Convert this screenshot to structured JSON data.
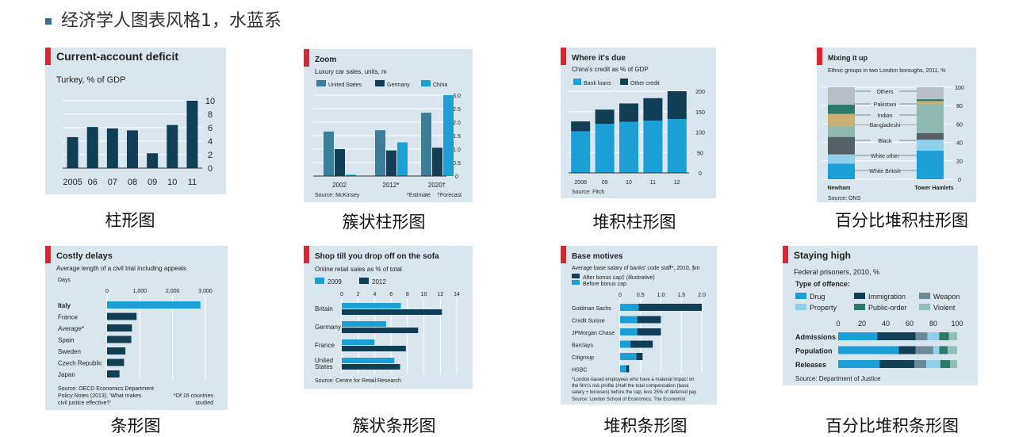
{
  "title": "经济学人图表风格1，水蓝系",
  "captions": [
    "柱形图",
    "簇状柱形图",
    "堆积柱形图",
    "百分比堆积柱形图",
    "条形图",
    "簇状条形图",
    "堆积条形图",
    "百分比堆积条形图"
  ],
  "colors": {
    "dark": "#0f3e55",
    "mid": "#3a7f9a",
    "light": "#1a9fd6",
    "pale": "#8fd1ec",
    "red": "#e3212f",
    "bg": "#d9e6ee"
  },
  "chart_data": [
    {
      "type": "bar",
      "title": "Current-account deficit",
      "subtitle": "Turkey, % of GDP",
      "categories": [
        "2005",
        "06",
        "07",
        "08",
        "09",
        "10",
        "11"
      ],
      "values": [
        4.6,
        6.1,
        5.9,
        5.6,
        2.2,
        6.4,
        10.0
      ],
      "yticks": [
        "0",
        "2",
        "4",
        "6",
        "8",
        "10"
      ],
      "ylim": [
        0,
        10
      ]
    },
    {
      "type": "bar",
      "title": "Zoom",
      "subtitle": "Luxury car sales, units, m",
      "categories": [
        "2002",
        "2012*",
        "2020†"
      ],
      "series": [
        {
          "name": "United States",
          "values": [
            1.65,
            1.7,
            2.35
          ]
        },
        {
          "name": "Germany",
          "values": [
            1.0,
            0.95,
            1.05
          ]
        },
        {
          "name": "China",
          "values": [
            0.05,
            1.25,
            3.0
          ]
        }
      ],
      "yticks": [
        "0",
        "0.5",
        "1.0",
        "1.5",
        "2.0",
        "2.5",
        "3.0"
      ],
      "ylim": [
        0,
        3
      ],
      "source": "Source: McKinsey",
      "notes": [
        "*Estimate",
        "†Forecast"
      ]
    },
    {
      "type": "bar",
      "title": "Where it's due",
      "subtitle": "China's credit as % of GDP",
      "categories": [
        "2008",
        "09",
        "10",
        "11",
        "12"
      ],
      "series": [
        {
          "name": "Bank loans",
          "values": [
            102,
            120,
            125,
            128,
            132
          ]
        },
        {
          "name": "Other credit",
          "values": [
            24,
            35,
            45,
            55,
            68
          ]
        }
      ],
      "yticks": [
        "0",
        "50",
        "100",
        "150",
        "200"
      ],
      "ylim": [
        0,
        200
      ],
      "source": "Source: Fitch"
    },
    {
      "type": "bar",
      "title": "Mixing it up",
      "subtitle": "Ethnic groups in two London boroughs, 2011, %",
      "categories": [
        "Newham",
        "Tower Hamlets"
      ],
      "series": [
        {
          "name": "White British",
          "values": [
            17,
            31
          ]
        },
        {
          "name": "White other",
          "values": [
            10,
            12
          ]
        },
        {
          "name": "Black",
          "values": [
            19,
            7
          ]
        },
        {
          "name": "Bangladeshi",
          "values": [
            12,
            32
          ]
        },
        {
          "name": "Indian",
          "values": [
            13,
            3
          ]
        },
        {
          "name": "Pakistani",
          "values": [
            10,
            2
          ]
        },
        {
          "name": "Others",
          "values": [
            19,
            13
          ]
        }
      ],
      "yticks": [
        "0",
        "20",
        "40",
        "60",
        "80",
        "100"
      ],
      "ylim": [
        0,
        100
      ],
      "source": "Source: ONS"
    },
    {
      "type": "bar",
      "title": "Costly delays",
      "subtitle": "Average length of a civil trial including appeals",
      "unit": "Days",
      "categories": [
        "Italy",
        "France",
        "Average*",
        "Spain",
        "Sweden",
        "Czech Republic",
        "Japan"
      ],
      "values": [
        2850,
        900,
        760,
        740,
        560,
        520,
        380
      ],
      "xticks": [
        "0",
        "1,000",
        "2,000",
        "3,000"
      ],
      "xlim": [
        0,
        3000
      ],
      "source": "Source: OECD Economics Department Policy Notes (2013), 'What makes civil justice effective?'",
      "note": "*Of 16 countries studied"
    },
    {
      "type": "bar",
      "title": "Shop till you drop off on the sofa",
      "subtitle": "Online retail sales as % of total",
      "categories": [
        "Britain",
        "Germany",
        "France",
        "United States"
      ],
      "series": [
        {
          "name": "2009",
          "values": [
            7.2,
            5.4,
            4.0,
            6.4
          ]
        },
        {
          "name": "2012",
          "values": [
            12.2,
            9.3,
            7.8,
            7.1
          ]
        }
      ],
      "xticks": [
        "0",
        "2",
        "4",
        "6",
        "8",
        "10",
        "12",
        "14"
      ],
      "xlim": [
        0,
        14
      ],
      "source": "Source: Centre for Retail Research"
    },
    {
      "type": "bar",
      "title": "Base motives",
      "subtitle": "Average base salary of banks' code staff*, 2010, $m",
      "categories": [
        "Goldman Sachs",
        "Credit Suisse",
        "JPMorgan Chase",
        "Barclays",
        "Citigroup",
        "HSBC"
      ],
      "series": [
        {
          "name": "Before bonus cap",
          "values": [
            0.45,
            0.42,
            0.42,
            0.25,
            0.4,
            0.15
          ]
        },
        {
          "name": "After bonus cap‡ (illustrative)",
          "values": [
            1.55,
            0.58,
            0.58,
            0.55,
            0.15,
            0.07
          ]
        }
      ],
      "xticks": [
        "0",
        "0.5",
        "1.0",
        "1.5",
        "2.0"
      ],
      "xlim": [
        0,
        2
      ],
      "footnote": "*London-based employees who have a material impact on the firm's risk profile  ‡Half the total compensation (base salary + bonuses) before the cap, less 25% of deferred pay",
      "source": "Source: London School of Economics; The Economist"
    },
    {
      "type": "bar",
      "title": "Staying high",
      "subtitle": "Federal prisoners, 2010, %",
      "legend_title": "Type of offence:",
      "categories": [
        "Admissions",
        "Population",
        "Releases"
      ],
      "series": [
        {
          "name": "Drug",
          "values": [
            33,
            51,
            35
          ]
        },
        {
          "name": "Immigration",
          "values": [
            32,
            14,
            29
          ]
        },
        {
          "name": "Weapon",
          "values": [
            10,
            15,
            10
          ]
        },
        {
          "name": "Property",
          "values": [
            10,
            5,
            12
          ]
        },
        {
          "name": "Public-order",
          "values": [
            8,
            7,
            8
          ]
        },
        {
          "name": "Violent",
          "values": [
            7,
            8,
            6
          ]
        }
      ],
      "xticks": [
        "0",
        "20",
        "40",
        "60",
        "80",
        "100"
      ],
      "xlim": [
        0,
        100
      ],
      "source": "Source: Department of Justice"
    }
  ]
}
